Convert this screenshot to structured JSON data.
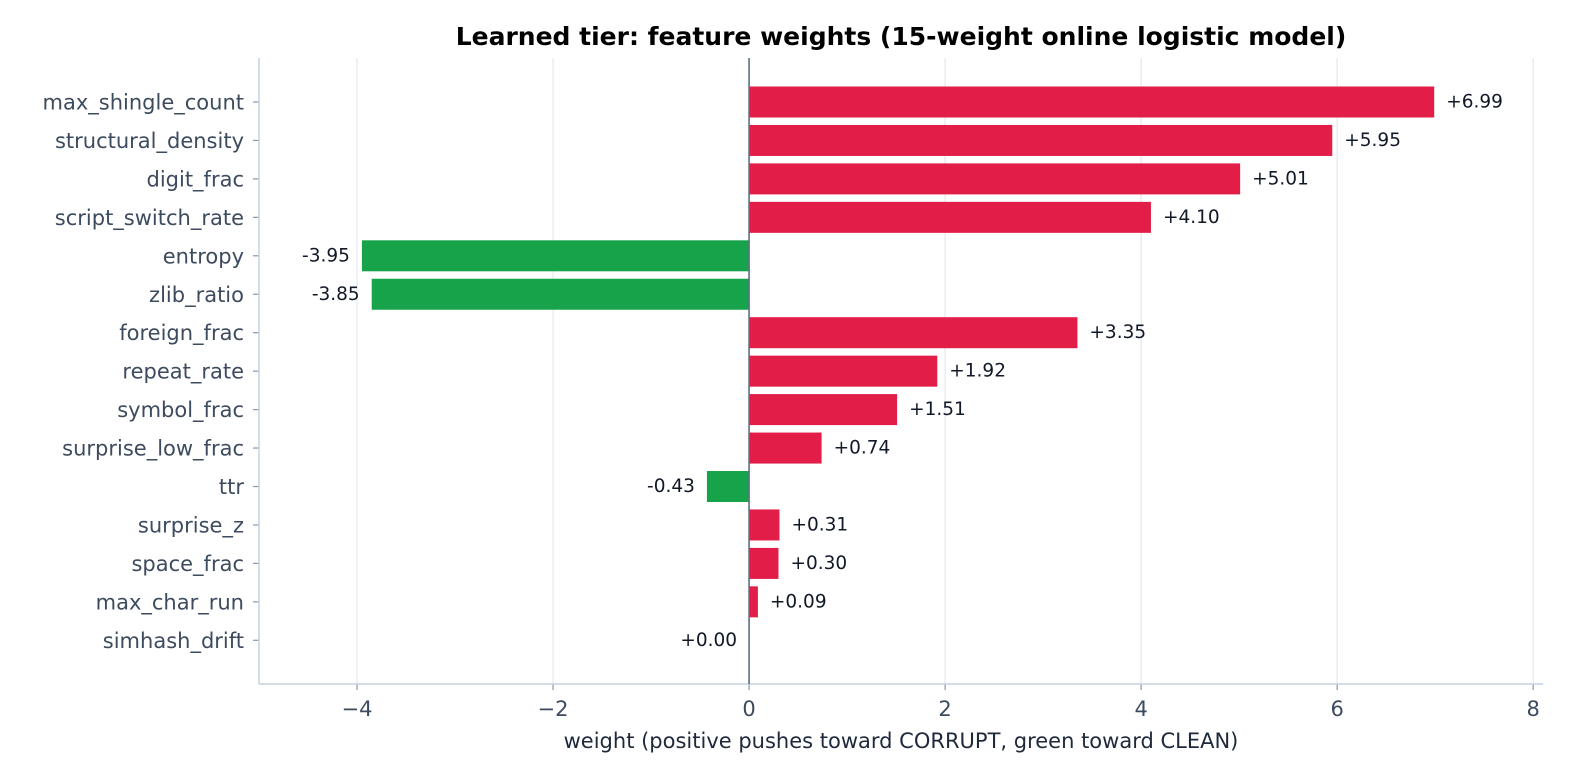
{
  "chart_data": {
    "type": "bar",
    "orientation": "horizontal",
    "title": "Learned tier: feature weights (15-weight online logistic model)",
    "xlabel": "weight (positive pushes toward CORRUPT, green toward CLEAN)",
    "ylabel": "",
    "xlim": [
      -5.0,
      8.1
    ],
    "xticks": [
      -4,
      -2,
      0,
      2,
      4,
      6,
      8
    ],
    "xtick_labels": [
      "−4",
      "−2",
      "0",
      "2",
      "4",
      "6",
      "8"
    ],
    "grid": "vertical",
    "positive_color": "#e11d48",
    "negative_color": "#16a34a",
    "categories": [
      "max_shingle_count",
      "structural_density",
      "digit_frac",
      "script_switch_rate",
      "entropy",
      "zlib_ratio",
      "foreign_frac",
      "repeat_rate",
      "symbol_frac",
      "surprise_low_frac",
      "ttr",
      "surprise_z",
      "space_frac",
      "max_char_run",
      "simhash_drift"
    ],
    "values": [
      6.99,
      5.95,
      5.01,
      4.1,
      -3.95,
      -3.85,
      3.35,
      1.92,
      1.51,
      0.74,
      -0.43,
      0.31,
      0.3,
      0.09,
      0.0
    ],
    "value_labels": [
      "+6.99",
      "+5.95",
      "+5.01",
      "+4.10",
      "-3.95",
      "-3.85",
      "+3.35",
      "+1.92",
      "+1.51",
      "+0.74",
      "-0.43",
      "+0.31",
      "+0.30",
      "+0.09",
      "+0.00"
    ]
  }
}
